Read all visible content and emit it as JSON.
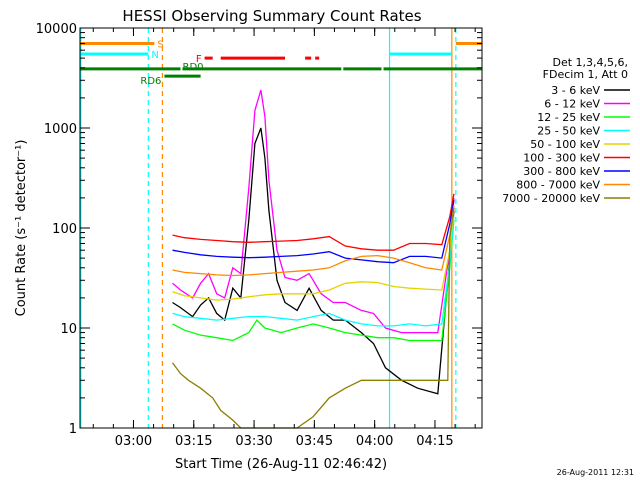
{
  "chart_data": {
    "type": "line",
    "title": "HESSI Observing Summary Count Rates",
    "xlabel": "Start Time (26-Aug-11 02:46:42)",
    "ylabel": "Count Rate (s⁻¹ detector⁻¹)",
    "yscale": "log",
    "ylim": [
      1,
      10000
    ],
    "x_unit": "minutes after 02:46:42 UT",
    "xlim": [
      0,
      100
    ],
    "x_ticks": [
      {
        "x": 13.3,
        "label": "03:00"
      },
      {
        "x": 28.3,
        "label": "03:15"
      },
      {
        "x": 43.3,
        "label": "03:30"
      },
      {
        "x": 58.3,
        "label": "03:45"
      },
      {
        "x": 73.3,
        "label": "04:00"
      },
      {
        "x": 88.3,
        "label": "04:15"
      }
    ],
    "y_ticks": [
      {
        "y": 1,
        "label": "1"
      },
      {
        "y": 10,
        "label": "10"
      },
      {
        "y": 100,
        "label": "100"
      },
      {
        "y": 1000,
        "label": "1000"
      },
      {
        "y": 10000,
        "label": "10000"
      }
    ],
    "legend_header": [
      "Det 1,3,4,5,6,",
      "FDecim 1, Att 0"
    ],
    "legend_position": "right",
    "series": [
      {
        "name": "3 - 6 keV",
        "color": "#000000",
        "x": [
          23,
          25,
          28,
          30,
          32,
          34,
          36,
          38,
          40,
          42,
          43.5,
          45,
          46,
          47,
          49,
          51,
          54,
          57,
          60,
          63,
          66,
          70,
          73,
          76,
          80,
          84,
          89,
          92,
          93
        ],
        "y": [
          18,
          16,
          13,
          17,
          20,
          14,
          12,
          25,
          20,
          120,
          700,
          1000,
          500,
          150,
          30,
          18,
          15,
          25,
          15,
          12,
          12,
          9,
          7,
          4,
          3,
          2.5,
          2.2,
          50,
          150
        ]
      },
      {
        "name": "6 - 12 keV",
        "color": "#ff00ff",
        "x": [
          23,
          25,
          28,
          30,
          32,
          34,
          36,
          38,
          40,
          42,
          43.5,
          45,
          46,
          47,
          49,
          51,
          54,
          57,
          60,
          63,
          66,
          70,
          73,
          76,
          80,
          84,
          89,
          92,
          93
        ],
        "y": [
          28,
          24,
          20,
          28,
          35,
          22,
          20,
          40,
          35,
          250,
          1500,
          2400,
          1300,
          300,
          60,
          32,
          30,
          35,
          22,
          18,
          18,
          15,
          14,
          10,
          9,
          9,
          9,
          60,
          200
        ]
      },
      {
        "name": "12 - 25 keV",
        "color": "#00ff00",
        "x": [
          23,
          26,
          30,
          34,
          38,
          42,
          44,
          46,
          50,
          54,
          58,
          62,
          66,
          70,
          74,
          78,
          82,
          86,
          90,
          92,
          93
        ],
        "y": [
          11,
          9.5,
          8.5,
          8,
          7.5,
          9,
          12,
          10,
          9,
          10,
          11,
          10,
          9,
          8.5,
          8,
          8,
          7.5,
          7.5,
          7.5,
          40,
          120
        ]
      },
      {
        "name": "25 - 50 keV",
        "color": "#00ffff",
        "x": [
          23,
          26,
          30,
          34,
          38,
          42,
          46,
          50,
          54,
          58,
          62,
          66,
          70,
          74,
          78,
          82,
          86,
          90,
          92,
          93
        ],
        "y": [
          14,
          13,
          12.5,
          12,
          12.5,
          13,
          13,
          12.5,
          12,
          13,
          14,
          12,
          11,
          10.5,
          10.5,
          11,
          10.5,
          11,
          45,
          130
        ]
      },
      {
        "name": "50 - 100 keV",
        "color": "#e6d200",
        "x": [
          23,
          26,
          30,
          34,
          38,
          42,
          46,
          50,
          54,
          58,
          62,
          66,
          70,
          74,
          78,
          82,
          86,
          90,
          92,
          93
        ],
        "y": [
          23,
          21,
          20,
          19,
          19.5,
          20.5,
          21.5,
          22,
          22,
          22,
          24,
          28,
          29,
          28.5,
          26,
          25,
          24.5,
          24,
          60,
          160
        ]
      },
      {
        "name": "100 - 300 keV",
        "color": "#ff0000",
        "x": [
          23,
          26,
          30,
          34,
          38,
          42,
          46,
          50,
          54,
          58,
          62,
          66,
          70,
          74,
          78,
          82,
          86,
          90,
          92,
          93
        ],
        "y": [
          85,
          80,
          77,
          75,
          73,
          72,
          73,
          74,
          75,
          78,
          82,
          66,
          62,
          60,
          60,
          70,
          70,
          68,
          130,
          220
        ]
      },
      {
        "name": "300 - 800 keV",
        "color": "#0000ff",
        "x": [
          23,
          26,
          30,
          34,
          38,
          42,
          46,
          50,
          54,
          58,
          62,
          66,
          70,
          74,
          78,
          82,
          86,
          90,
          92,
          93
        ],
        "y": [
          60,
          57,
          54,
          52,
          51,
          50.5,
          51,
          52,
          53,
          55,
          58,
          50,
          48,
          46,
          45,
          52,
          52,
          50,
          110,
          190
        ]
      },
      {
        "name": "800 - 7000 keV",
        "color": "#ff8800",
        "x": [
          23,
          26,
          30,
          34,
          38,
          42,
          46,
          50,
          54,
          58,
          62,
          66,
          70,
          74,
          78,
          82,
          86,
          90,
          92,
          93
        ],
        "y": [
          38,
          36,
          35,
          34,
          33.5,
          34,
          35,
          36,
          37,
          38,
          40,
          47,
          52,
          53,
          50,
          45,
          40,
          38,
          85,
          170
        ]
      },
      {
        "name": "7000 - 20000 keV",
        "color": "#8b8000",
        "x": [
          23,
          25,
          27,
          30,
          33,
          35,
          38,
          40,
          42,
          46,
          50,
          54,
          58,
          62,
          66,
          70,
          74,
          78,
          82,
          86,
          90,
          91.5,
          92,
          93
        ],
        "y": [
          4.5,
          3.5,
          3,
          2.5,
          2,
          1.5,
          1.2,
          1,
          1,
          1,
          1,
          1,
          1.3,
          2,
          2.5,
          3,
          3,
          3,
          3,
          3,
          3,
          3,
          80,
          160
        ]
      }
    ],
    "state_bars": [
      {
        "label": "S",
        "color": "#ff8800",
        "value": 7000,
        "segments": [
          [
            0,
            18.5
          ],
          [
            93.5,
            100
          ]
        ]
      },
      {
        "label": "N",
        "color": "#00ffff",
        "value": 5500,
        "segments": [
          [
            0,
            17
          ],
          [
            77,
            92.5
          ]
        ]
      },
      {
        "label": "F",
        "color": "#ff0000",
        "value": 5000,
        "segments": [
          [
            31,
            33
          ],
          [
            35,
            51
          ],
          [
            56,
            57.5
          ],
          [
            58.5,
            59.5
          ]
        ]
      },
      {
        "label": "RD0",
        "color": "#007f00",
        "value": 3900,
        "segments": [
          [
            0,
            25
          ],
          [
            25.5,
            65
          ],
          [
            65.5,
            75
          ],
          [
            75.5,
            100
          ]
        ]
      },
      {
        "label": "RD6",
        "color": "#007f00",
        "value": 3300,
        "segments": [
          [
            21,
            30
          ]
        ]
      }
    ],
    "vertical_markers": [
      {
        "x": 0.2,
        "color": "#00ffff",
        "style": "solid"
      },
      {
        "x": 17,
        "color": "#00ffff",
        "style": "dashed"
      },
      {
        "x": 20.5,
        "color": "#ff8800",
        "style": "dashed"
      },
      {
        "x": 77,
        "color": "#00ffff",
        "style": "solid"
      },
      {
        "x": 92.5,
        "color": "#ff8800",
        "style": "solid"
      },
      {
        "x": 93.5,
        "color": "#00ffff",
        "style": "dashed"
      }
    ],
    "grid": false
  },
  "footer_timestamp": "26-Aug-2011 12:31"
}
